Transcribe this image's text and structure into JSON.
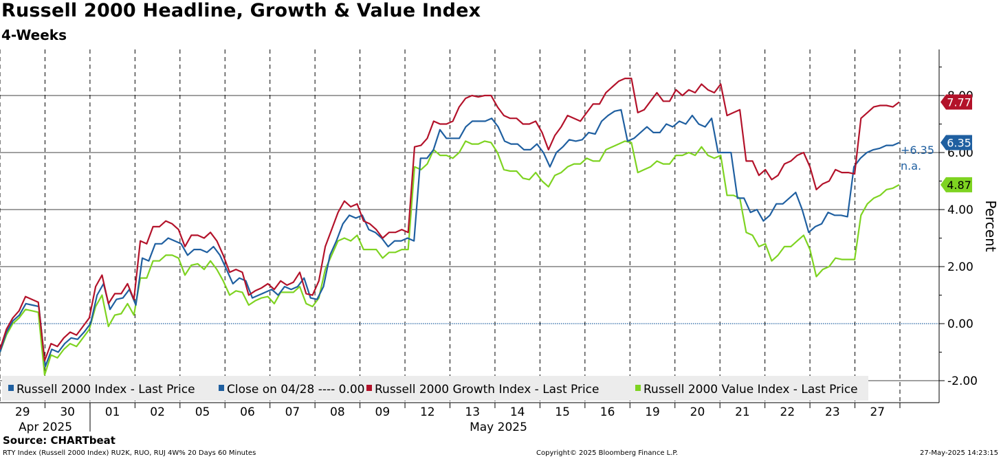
{
  "title": "Russell 2000 Headline, Growth & Value Index",
  "subtitle": "4-Weeks",
  "source": "Source: CHARTbeat",
  "footer": {
    "left": "RTY Index (Russell 2000 Index) RU2K, RUO, RUJ 4W% 20 Days 60 Minutes",
    "center": "Copyright© 2025 Bloomberg Finance L.P.",
    "right": "27-May-2025 14:23:15"
  },
  "colors": {
    "headline": "#1f5fa0",
    "close": "#1f5fa0",
    "growth": "#b3122a",
    "value": "#7ed321",
    "zero_line": "#1f5fa0"
  },
  "chart_data": {
    "type": "line",
    "ylabel": "Percent",
    "ylim": [
      -2.0,
      10.0
    ],
    "y_ticks": [
      "-2.00",
      "0.00",
      "2.00",
      "4.00",
      "6.00",
      "8.00"
    ],
    "y_tick_values": [
      -2,
      0,
      2,
      4,
      6,
      8
    ],
    "x_tick_labels": [
      "29",
      "30",
      "01",
      "02",
      "05",
      "06",
      "07",
      "08",
      "09",
      "12",
      "13",
      "14",
      "15",
      "16",
      "19",
      "20",
      "21",
      "22",
      "23",
      "27"
    ],
    "x_period_labels": [
      "Apr 2025",
      "May 2025"
    ],
    "grid": true,
    "legend_position": "bottom-left",
    "series": [
      {
        "name": "Russell 2000 Index - Last Price",
        "key": "headline",
        "last_value": "6.35",
        "values": [
          -1.0,
          -0.3,
          0.1,
          0.3,
          0.7,
          0.65,
          0.6,
          -1.5,
          -0.9,
          -1.0,
          -0.7,
          -0.5,
          -0.55,
          -0.3,
          0.0,
          1.0,
          1.4,
          0.5,
          0.85,
          0.9,
          1.2,
          0.65,
          2.3,
          2.2,
          2.8,
          2.8,
          3.0,
          2.9,
          2.8,
          2.4,
          2.6,
          2.6,
          2.5,
          2.7,
          2.4,
          1.9,
          1.4,
          1.6,
          1.5,
          0.9,
          1.0,
          1.1,
          1.2,
          1.0,
          1.3,
          1.2,
          1.3,
          1.6,
          0.9,
          0.85,
          1.3,
          2.4,
          2.9,
          3.5,
          3.8,
          3.7,
          3.8,
          3.3,
          3.2,
          3.0,
          2.7,
          2.9,
          2.9,
          3.0,
          2.9,
          5.8,
          5.8,
          6.1,
          6.8,
          6.5,
          6.5,
          6.5,
          6.9,
          7.1,
          7.1,
          7.1,
          7.2,
          6.9,
          6.4,
          6.3,
          6.3,
          6.1,
          6.1,
          6.3,
          6.0,
          5.5,
          6.0,
          6.2,
          6.45,
          6.4,
          6.45,
          6.7,
          6.65,
          7.1,
          7.3,
          7.45,
          7.5,
          6.4,
          6.5,
          6.7,
          6.9,
          6.7,
          6.7,
          7.0,
          6.9,
          7.1,
          7.0,
          7.3,
          7.0,
          6.9,
          7.2,
          6.0,
          6.0,
          6.0,
          4.4,
          4.4,
          3.9,
          4.0,
          3.6,
          3.8,
          4.2,
          4.2,
          4.4,
          4.6,
          4.0,
          3.2,
          3.4,
          3.5,
          3.9,
          3.8,
          3.8,
          3.75,
          5.5,
          5.8,
          6.0,
          6.1,
          6.15,
          6.25,
          6.25,
          6.35
        ]
      },
      {
        "name": "Close on 04/28 ---- 0.00",
        "key": "close",
        "value": 0.0
      },
      {
        "name": "Russell 2000 Growth Index - Last Price",
        "key": "growth",
        "last_value": "7.77",
        "values": [
          -0.9,
          -0.2,
          0.2,
          0.45,
          0.95,
          0.85,
          0.75,
          -1.3,
          -0.7,
          -0.8,
          -0.5,
          -0.3,
          -0.4,
          -0.1,
          0.2,
          1.3,
          1.7,
          0.7,
          1.05,
          1.05,
          1.4,
          0.85,
          2.9,
          2.8,
          3.4,
          3.4,
          3.6,
          3.5,
          3.3,
          2.7,
          3.1,
          3.1,
          3.0,
          3.2,
          2.9,
          2.4,
          1.8,
          1.9,
          1.8,
          1.0,
          1.15,
          1.25,
          1.4,
          1.2,
          1.5,
          1.35,
          1.45,
          1.8,
          1.05,
          1.0,
          1.5,
          2.7,
          3.3,
          3.9,
          4.3,
          4.1,
          4.2,
          3.6,
          3.5,
          3.3,
          3.0,
          3.2,
          3.2,
          3.3,
          3.2,
          6.2,
          6.25,
          6.5,
          7.1,
          7.0,
          7.0,
          7.1,
          7.6,
          7.9,
          8.0,
          7.95,
          8.0,
          8.0,
          7.6,
          7.3,
          7.2,
          7.2,
          7.0,
          7.0,
          7.1,
          6.7,
          6.1,
          6.6,
          6.9,
          7.3,
          7.2,
          7.1,
          7.4,
          7.7,
          7.7,
          8.1,
          8.3,
          8.5,
          8.6,
          8.6,
          7.4,
          7.5,
          7.8,
          8.1,
          7.8,
          7.8,
          8.2,
          8.0,
          8.2,
          8.1,
          8.4,
          8.2,
          8.1,
          8.4,
          7.3,
          7.4,
          7.5,
          5.7,
          5.7,
          5.2,
          5.4,
          5.05,
          5.2,
          5.6,
          5.7,
          5.9,
          6.0,
          5.5,
          4.7,
          4.9,
          5.0,
          5.4,
          5.3,
          5.3,
          5.25,
          7.2,
          7.4,
          7.6,
          7.65,
          7.65,
          7.6,
          7.77
        ]
      },
      {
        "name": "Russell 2000 Value Index - Last Price",
        "key": "value",
        "last_value": "4.87",
        "values": [
          -1.0,
          -0.4,
          0.0,
          0.2,
          0.5,
          0.45,
          0.4,
          -1.8,
          -1.1,
          -1.2,
          -0.9,
          -0.7,
          -0.8,
          -0.5,
          -0.2,
          0.6,
          1.0,
          -0.1,
          0.3,
          0.35,
          0.7,
          0.3,
          1.6,
          1.6,
          2.2,
          2.2,
          2.4,
          2.4,
          2.3,
          1.7,
          2.05,
          2.1,
          1.9,
          2.2,
          1.9,
          1.5,
          1.0,
          1.15,
          1.1,
          0.65,
          0.8,
          0.9,
          0.95,
          0.7,
          1.1,
          1.1,
          1.1,
          1.3,
          0.7,
          0.6,
          0.9,
          1.9,
          2.4,
          2.9,
          3.0,
          2.9,
          3.1,
          2.6,
          2.6,
          2.6,
          2.3,
          2.5,
          2.5,
          2.6,
          2.6,
          5.5,
          5.4,
          5.6,
          6.1,
          5.9,
          5.9,
          5.8,
          6.0,
          6.4,
          6.3,
          6.3,
          6.4,
          6.35,
          6.0,
          5.4,
          5.35,
          5.35,
          5.1,
          5.05,
          5.3,
          5.0,
          4.8,
          5.2,
          5.3,
          5.5,
          5.6,
          5.6,
          5.8,
          5.7,
          5.7,
          6.1,
          6.2,
          6.3,
          6.4,
          6.35,
          5.3,
          5.4,
          5.5,
          5.7,
          5.6,
          5.6,
          5.9,
          5.9,
          6.0,
          5.9,
          6.2,
          5.9,
          5.8,
          5.9,
          4.5,
          4.5,
          4.4,
          3.2,
          3.1,
          2.7,
          2.8,
          2.2,
          2.4,
          2.7,
          2.7,
          2.9,
          3.1,
          2.6,
          1.65,
          1.9,
          2.0,
          2.3,
          2.25,
          2.25,
          2.25,
          3.8,
          4.2,
          4.4,
          4.5,
          4.7,
          4.75,
          4.87
        ]
      }
    ],
    "annotations": [
      "+6.35",
      "n.a."
    ]
  }
}
